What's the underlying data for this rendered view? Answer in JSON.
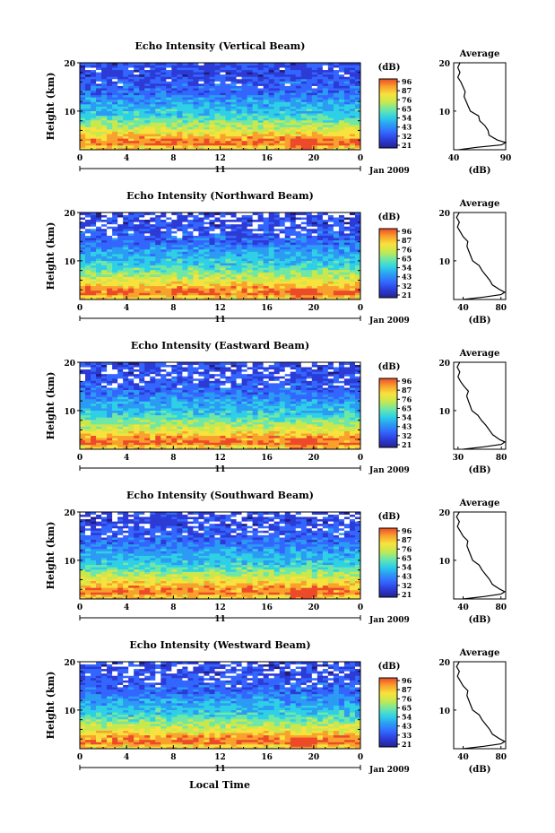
{
  "figure": {
    "xlabel": "Local Time",
    "date_label": "Jan 2009",
    "day_label": "11"
  },
  "colors": {
    "colormap": [
      "#25238f",
      "#2c3ad6",
      "#3366ff",
      "#2b9bf3",
      "#2fd0e6",
      "#6fe7a6",
      "#c8e84e",
      "#f8e23d",
      "#f9a12d",
      "#ed4a2a"
    ],
    "line": "#000000",
    "background": "#ffffff"
  },
  "chart_data": [
    {
      "type": "heatmap",
      "title": "Echo Intensity (Vertical Beam)",
      "ylabel": "Height (km)",
      "xlim": [
        0,
        24
      ],
      "ylim": [
        2,
        20
      ],
      "x_ticks": [
        "0",
        "4",
        "8",
        "12",
        "16",
        "20",
        "0"
      ],
      "y_ticks": [
        "20",
        "10"
      ],
      "colorbar": {
        "label": "(dB)",
        "ticks": [
          "96",
          "87",
          "76",
          "65",
          "54",
          "43",
          "32",
          "21"
        ]
      },
      "profile": {
        "title": "Average",
        "xlabel": "(dB)",
        "xlim": [
          40,
          90
        ],
        "x_ticks": [
          "40",
          "90"
        ],
        "y_ticks": [
          "20",
          "10"
        ],
        "height_km": [
          2,
          2.5,
          3,
          3.5,
          4,
          5,
          6,
          7,
          8,
          9,
          10,
          11,
          12,
          13,
          14,
          15,
          16,
          17,
          18,
          19,
          20
        ],
        "values_db": [
          45,
          62,
          86,
          90,
          82,
          74,
          73,
          70,
          65,
          64,
          56,
          54,
          52,
          50,
          51,
          49,
          47,
          44,
          46,
          44,
          46
        ]
      }
    },
    {
      "type": "heatmap",
      "title": "Echo Intensity (Northward Beam)",
      "ylabel": "Height (km)",
      "xlim": [
        0,
        24
      ],
      "ylim": [
        2,
        20
      ],
      "x_ticks": [
        "0",
        "4",
        "8",
        "12",
        "16",
        "20",
        "0"
      ],
      "y_ticks": [
        "20",
        "10"
      ],
      "colorbar": {
        "label": "(dB)",
        "ticks": [
          "96",
          "87",
          "76",
          "65",
          "54",
          "43",
          "32",
          "21"
        ]
      },
      "profile": {
        "title": "Average",
        "xlabel": "(dB)",
        "xlim": [
          30,
          85
        ],
        "x_ticks": [
          "40",
          "80"
        ],
        "y_ticks": [
          "20",
          "10"
        ],
        "height_km": [
          2,
          2.5,
          3,
          3.5,
          4,
          5,
          6,
          7,
          8,
          9,
          10,
          11,
          12,
          13,
          14,
          15,
          16,
          17,
          18,
          19,
          20
        ],
        "values_db": [
          40,
          62,
          80,
          84,
          79,
          71,
          68,
          64,
          60,
          57,
          50,
          48,
          46,
          44,
          45,
          40,
          37,
          34,
          36,
          33,
          36
        ]
      }
    },
    {
      "type": "heatmap",
      "title": "Echo Intensity (Eastward Beam)",
      "ylabel": "Height (km)",
      "xlim": [
        0,
        24
      ],
      "ylim": [
        2,
        20
      ],
      "x_ticks": [
        "0",
        "4",
        "8",
        "12",
        "16",
        "20",
        "0"
      ],
      "y_ticks": [
        "20",
        "10"
      ],
      "colorbar": {
        "label": "(dB)",
        "ticks": [
          "96",
          "87",
          "76",
          "65",
          "54",
          "43",
          "32",
          "21"
        ]
      },
      "profile": {
        "title": "Average",
        "xlabel": "(dB)",
        "xlim": [
          25,
          85
        ],
        "x_ticks": [
          "30",
          "80"
        ],
        "y_ticks": [
          "20",
          "10"
        ],
        "height_km": [
          2,
          2.5,
          3,
          3.5,
          4,
          5,
          6,
          7,
          8,
          9,
          10,
          11,
          12,
          13,
          14,
          15,
          16,
          17,
          18,
          19,
          20
        ],
        "values_db": [
          36,
          60,
          80,
          84,
          78,
          70,
          66,
          62,
          57,
          53,
          46,
          44,
          42,
          40,
          42,
          37,
          33,
          30,
          32,
          29,
          32
        ]
      }
    },
    {
      "type": "heatmap",
      "title": "Echo Intensity (Southward Beam)",
      "ylabel": "Height (km)",
      "xlim": [
        0,
        24
      ],
      "ylim": [
        2,
        20
      ],
      "x_ticks": [
        "0",
        "4",
        "8",
        "12",
        "16",
        "20",
        "0"
      ],
      "y_ticks": [
        "20",
        "10"
      ],
      "colorbar": {
        "label": "(dB)",
        "ticks": [
          "96",
          "87",
          "76",
          "65",
          "54",
          "43",
          "32",
          "21"
        ]
      },
      "profile": {
        "title": "Average",
        "xlabel": "(dB)",
        "xlim": [
          30,
          85
        ],
        "x_ticks": [
          "40",
          "80"
        ],
        "y_ticks": [
          "20",
          "10"
        ],
        "height_km": [
          2,
          2.5,
          3,
          3.5,
          4,
          5,
          6,
          7,
          8,
          9,
          10,
          11,
          12,
          13,
          14,
          15,
          16,
          17,
          18,
          19,
          20
        ],
        "values_db": [
          40,
          62,
          80,
          84,
          79,
          71,
          68,
          64,
          60,
          57,
          50,
          48,
          46,
          44,
          45,
          40,
          37,
          34,
          36,
          33,
          36
        ]
      }
    },
    {
      "type": "heatmap",
      "title": "Echo Intensity (Westward Beam)",
      "ylabel": "Height (km)",
      "xlim": [
        0,
        24
      ],
      "ylim": [
        2,
        20
      ],
      "x_ticks": [
        "0",
        "4",
        "8",
        "12",
        "16",
        "20",
        "0"
      ],
      "y_ticks": [
        "20",
        "10"
      ],
      "colorbar": {
        "label": "(dB)",
        "ticks": [
          "96",
          "87",
          "76",
          "65",
          "54",
          "43",
          "33",
          "21"
        ]
      },
      "profile": {
        "title": "Average",
        "xlabel": "(dB)",
        "xlim": [
          30,
          85
        ],
        "x_ticks": [
          "40",
          "80"
        ],
        "y_ticks": [
          "20",
          "10"
        ],
        "height_km": [
          2,
          2.5,
          3,
          3.5,
          4,
          5,
          6,
          7,
          8,
          9,
          10,
          11,
          12,
          13,
          14,
          15,
          16,
          17,
          18,
          19,
          20
        ],
        "values_db": [
          40,
          62,
          80,
          84,
          79,
          71,
          68,
          64,
          60,
          57,
          50,
          48,
          46,
          44,
          45,
          40,
          37,
          34,
          36,
          33,
          36
        ]
      }
    }
  ]
}
